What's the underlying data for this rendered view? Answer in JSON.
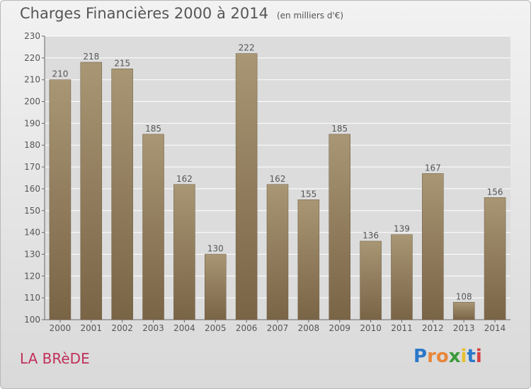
{
  "title": "Charges Financières 2000 à 2014",
  "subtitle": "(en milliers d'€)",
  "commune": "LA BRèDE",
  "logo": {
    "letters": [
      "P",
      "r",
      "o",
      "x",
      "i",
      "t",
      "i"
    ],
    "colors": [
      "#2b78c9",
      "#e7863a",
      "#e7863a",
      "#3a9a3a",
      "#e7c12f",
      "#2b78c9",
      "#d64040"
    ]
  },
  "colors": {
    "bar_top": "#a89674",
    "bar_bottom": "#7a6446",
    "text": "#555555",
    "grid": "#ffffff",
    "plot_bg": "#dcdcdc"
  },
  "chart_data": {
    "type": "bar",
    "title": "Charges Financières 2000 à 2014",
    "subtitle": "(en milliers d'€)",
    "categories": [
      "2000",
      "2001",
      "2002",
      "2003",
      "2004",
      "2005",
      "2006",
      "2007",
      "2008",
      "2009",
      "2010",
      "2011",
      "2012",
      "2013",
      "2014"
    ],
    "values": [
      210,
      218,
      215,
      185,
      162,
      130,
      222,
      162,
      155,
      185,
      136,
      139,
      167,
      108,
      156
    ],
    "ylim": [
      100,
      230
    ],
    "yticks": [
      100,
      110,
      120,
      130,
      140,
      150,
      160,
      170,
      180,
      190,
      200,
      210,
      220,
      230
    ],
    "grid": true
  }
}
